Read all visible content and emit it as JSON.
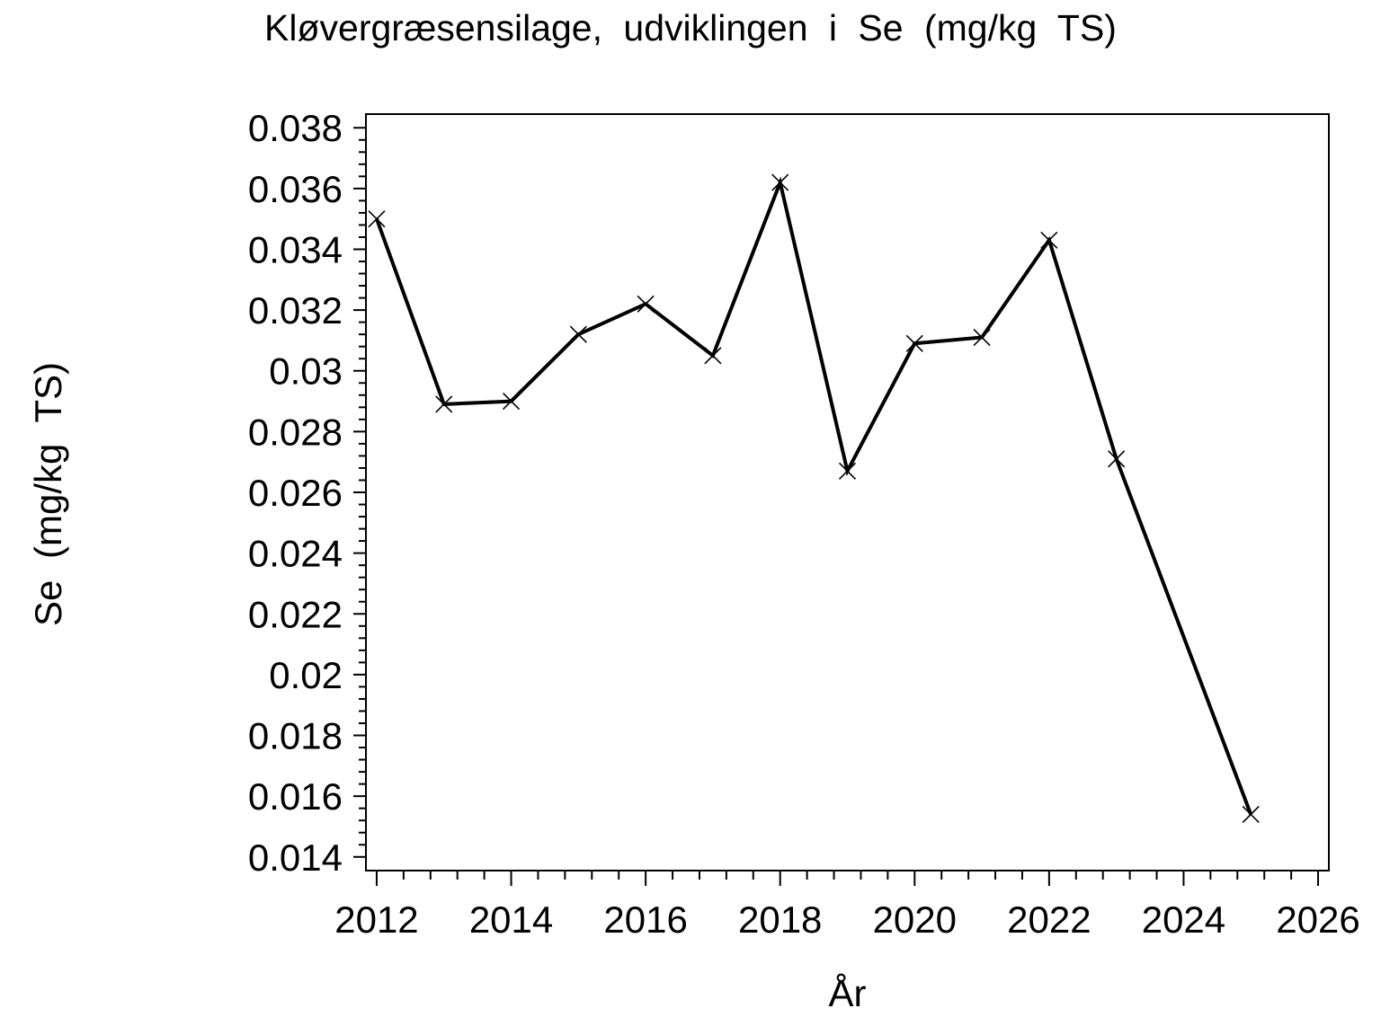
{
  "chart_data": {
    "type": "line",
    "title": "Kløvergræsensilage, udviklingen i Se (mg/kg TS)",
    "xlabel": "År",
    "ylabel": "Se (mg/kg TS)",
    "x": [
      2012,
      2013,
      2014,
      2015,
      2016,
      2017,
      2018,
      2019,
      2020,
      2021,
      2022,
      2023,
      2025
    ],
    "y": [
      0.035,
      0.0289,
      0.029,
      0.0312,
      0.0322,
      0.0305,
      0.0362,
      0.0267,
      0.0309,
      0.0311,
      0.0343,
      0.0271,
      0.0154
    ],
    "xlim": [
      2011.84,
      2026.16
    ],
    "ylim": [
      0.01355,
      0.03845
    ],
    "x_major_ticks": [
      2012,
      2014,
      2016,
      2018,
      2020,
      2022,
      2024,
      2026
    ],
    "x_tick_labels": [
      "2012",
      "2014",
      "2016",
      "2018",
      "2020",
      "2022",
      "2024",
      "2026"
    ],
    "x_minor_divisions": 5,
    "y_major_ticks": [
      0.014,
      0.016,
      0.018,
      0.02,
      0.022,
      0.024,
      0.026,
      0.028,
      0.03,
      0.032,
      0.034,
      0.036,
      0.038
    ],
    "y_tick_labels": [
      "0.014",
      "0.016",
      "0.018",
      "0.02",
      "0.022",
      "0.024",
      "0.026",
      "0.028",
      "0.03",
      "0.032",
      "0.034",
      "0.036",
      "0.038"
    ],
    "y_minor_divisions": 5,
    "marker": "x",
    "line_color": "#000000",
    "background_color": "#ffffff",
    "grid": false,
    "legend": "none"
  }
}
